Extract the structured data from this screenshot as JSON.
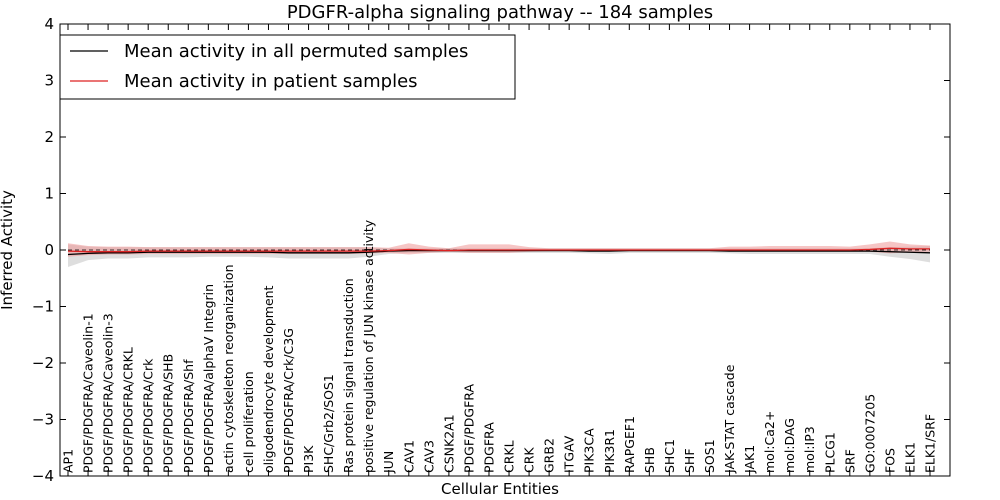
{
  "chart_data": {
    "type": "line",
    "title": "PDGFR-alpha signaling pathway -- 184 samples",
    "xlabel": "Cellular Entities",
    "ylabel": "Inferred Activity",
    "ylim": [
      -4,
      4
    ],
    "yticks": [
      4,
      3,
      2,
      1,
      0,
      -1,
      -2,
      -3,
      -4
    ],
    "ytick_labels": [
      "4",
      "3",
      "2",
      "1",
      "0",
      "−1",
      "−2",
      "−3",
      "−4"
    ],
    "grid": false,
    "legend_position": "top-left",
    "categories": [
      "AP1",
      "PDGF/PDGFRA/Caveolin-1",
      "PDGF/PDGFRA/Caveolin-3",
      "PDGF/PDGFRA/CRKL",
      "PDGF/PDGFRA/Crk",
      "PDGF/PDGFRA/SHB",
      "PDGF/PDGFRA/Shf",
      "PDGF/PDGFRA/alphaV Integrin",
      "actin cytoskeleton reorganization",
      "cell proliferation",
      "oligodendrocyte development",
      "PDGF/PDGFRA/Crk/C3G",
      "PI3K",
      "SHC/Grb2/SOS1",
      "Ras protein signal transduction",
      "positive regulation of JUN kinase activity",
      "JUN",
      "CAV1",
      "CAV3",
      "CSNK2A1",
      "PDGF/PDGFRA",
      "PDGFRA",
      "CRKL",
      "CRK",
      "GRB2",
      "ITGAV",
      "PIK3CA",
      "PIK3R1",
      "RAPGEF1",
      "SHB",
      "SHC1",
      "SHF",
      "SOS1",
      "JAK-STAT cascade",
      "JAK1",
      "mol:Ca2+",
      "mol:DAG",
      "mol:IP3",
      "PLCG1",
      "SRF",
      "GO:0007205",
      "FOS",
      "ELK1",
      "ELK1/SRF"
    ],
    "series": [
      {
        "name": "Mean activity in all permuted samples",
        "color": "#000000",
        "band_color": "#c8c8c8",
        "values": [
          -0.08,
          -0.06,
          -0.05,
          -0.05,
          -0.04,
          -0.04,
          -0.04,
          -0.04,
          -0.04,
          -0.04,
          -0.04,
          -0.05,
          -0.05,
          -0.05,
          -0.05,
          -0.04,
          -0.02,
          -0.01,
          -0.01,
          -0.01,
          -0.01,
          -0.01,
          -0.01,
          -0.01,
          -0.01,
          -0.01,
          -0.02,
          -0.02,
          -0.01,
          -0.01,
          -0.01,
          -0.01,
          -0.01,
          -0.02,
          -0.02,
          -0.02,
          -0.02,
          -0.02,
          -0.02,
          -0.02,
          -0.02,
          -0.03,
          -0.04,
          -0.05
        ],
        "band_low": [
          -0.3,
          -0.18,
          -0.15,
          -0.15,
          -0.13,
          -0.13,
          -0.13,
          -0.12,
          -0.12,
          -0.12,
          -0.13,
          -0.15,
          -0.15,
          -0.15,
          -0.15,
          -0.12,
          -0.07,
          -0.05,
          -0.05,
          -0.05,
          -0.05,
          -0.05,
          -0.05,
          -0.05,
          -0.05,
          -0.05,
          -0.06,
          -0.07,
          -0.05,
          -0.05,
          -0.05,
          -0.05,
          -0.05,
          -0.06,
          -0.07,
          -0.07,
          -0.07,
          -0.07,
          -0.07,
          -0.07,
          -0.07,
          -0.12,
          -0.16,
          -0.22
        ],
        "band_high": [
          0.1,
          0.06,
          0.05,
          0.05,
          0.05,
          0.05,
          0.05,
          0.05,
          0.05,
          0.05,
          0.05,
          0.05,
          0.05,
          0.05,
          0.05,
          0.05,
          0.03,
          0.03,
          0.03,
          0.03,
          0.03,
          0.03,
          0.03,
          0.03,
          0.03,
          0.03,
          0.03,
          0.03,
          0.03,
          0.03,
          0.03,
          0.03,
          0.03,
          0.03,
          0.03,
          0.03,
          0.03,
          0.03,
          0.03,
          0.03,
          0.03,
          0.05,
          0.06,
          0.07
        ]
      },
      {
        "name": "Mean activity in patient samples",
        "color": "#dd2222",
        "band_color": "#ee9595",
        "values": [
          -0.02,
          -0.03,
          -0.03,
          -0.03,
          -0.02,
          -0.02,
          -0.02,
          -0.02,
          -0.02,
          -0.02,
          -0.02,
          -0.02,
          -0.02,
          -0.02,
          -0.02,
          -0.02,
          -0.01,
          0.01,
          0.0,
          -0.01,
          0.0,
          0.0,
          0.0,
          0.0,
          0.0,
          0.0,
          0.0,
          0.0,
          0.0,
          0.0,
          0.0,
          0.0,
          0.0,
          0.0,
          0.0,
          0.0,
          0.0,
          0.0,
          0.0,
          0.0,
          0.01,
          0.03,
          0.02,
          0.02
        ],
        "band_low": [
          -0.12,
          -0.09,
          -0.08,
          -0.08,
          -0.07,
          -0.07,
          -0.07,
          -0.07,
          -0.07,
          -0.07,
          -0.07,
          -0.07,
          -0.07,
          -0.07,
          -0.07,
          -0.06,
          -0.05,
          -0.08,
          -0.05,
          -0.03,
          -0.05,
          -0.05,
          -0.05,
          -0.03,
          -0.02,
          -0.02,
          -0.02,
          -0.02,
          -0.02,
          -0.02,
          -0.02,
          -0.02,
          -0.02,
          -0.02,
          -0.02,
          -0.02,
          -0.02,
          -0.02,
          -0.02,
          -0.02,
          -0.03,
          -0.06,
          -0.04,
          -0.03
        ],
        "band_high": [
          0.12,
          0.07,
          0.06,
          0.06,
          0.05,
          0.05,
          0.05,
          0.05,
          0.05,
          0.05,
          0.05,
          0.05,
          0.05,
          0.05,
          0.05,
          0.05,
          0.04,
          0.12,
          0.06,
          0.03,
          0.1,
          0.1,
          0.1,
          0.05,
          0.03,
          0.03,
          0.03,
          0.03,
          0.03,
          0.03,
          0.03,
          0.03,
          0.03,
          0.06,
          0.06,
          0.07,
          0.07,
          0.07,
          0.07,
          0.06,
          0.1,
          0.15,
          0.1,
          0.08
        ]
      }
    ]
  }
}
